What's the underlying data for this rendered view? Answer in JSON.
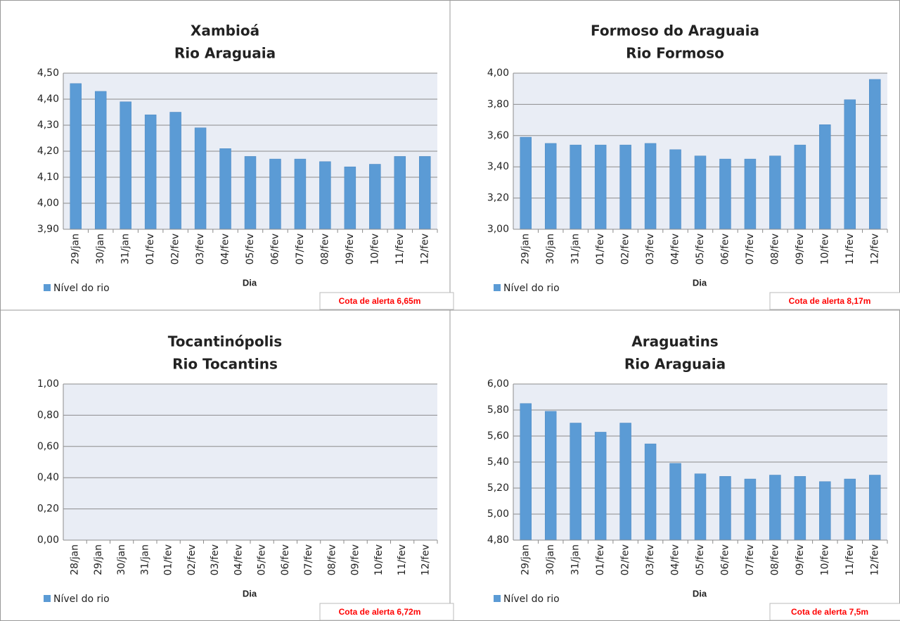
{
  "chart_data": [
    {
      "type": "bar",
      "title": "Xambioá",
      "subtitle": "Rio Araguaia",
      "categories": [
        "29/jan",
        "30/jan",
        "31/jan",
        "01/fev",
        "02/fev",
        "03/fev",
        "04/fev",
        "05/fev",
        "06/fev",
        "07/fev",
        "08/fev",
        "09/fev",
        "10/fev",
        "11/fev",
        "12/fev"
      ],
      "series": [
        {
          "name": "Nível do rio",
          "color": "#5b9bd5",
          "values": [
            4.46,
            4.43,
            4.39,
            4.34,
            4.35,
            4.29,
            4.21,
            4.18,
            4.17,
            4.17,
            4.16,
            4.14,
            4.15,
            4.18,
            4.18
          ]
        }
      ],
      "ylim": [
        3.9,
        4.5
      ],
      "yticks": [
        {
          "value": 3.9,
          "label": "3,90"
        },
        {
          "value": 4.0,
          "label": "4,00"
        },
        {
          "value": 4.1,
          "label": "4,10"
        },
        {
          "value": 4.2,
          "label": "4,20"
        },
        {
          "value": 4.3,
          "label": "4,30"
        },
        {
          "value": 4.4,
          "label": "4,40"
        },
        {
          "value": 4.5,
          "label": "4,50"
        }
      ],
      "grid": true,
      "x_label": "Dia",
      "annotation": "Cota de alerta 6,65m"
    },
    {
      "type": "bar",
      "title": "Formoso do Araguaia",
      "subtitle": "Rio Formoso",
      "categories": [
        "29/jan",
        "30/jan",
        "31/jan",
        "01/fev",
        "02/fev",
        "03/fev",
        "04/fev",
        "05/fev",
        "06/fev",
        "07/fev",
        "08/fev",
        "09/fev",
        "10/fev",
        "11/fev",
        "12/fev"
      ],
      "series": [
        {
          "name": "Nível do rio",
          "color": "#5b9bd5",
          "values": [
            3.59,
            3.55,
            3.54,
            3.54,
            3.54,
            3.55,
            3.51,
            3.47,
            3.45,
            3.45,
            3.47,
            3.54,
            3.67,
            3.83,
            3.96
          ]
        }
      ],
      "ylim": [
        3.0,
        4.0
      ],
      "yticks": [
        {
          "value": 3.0,
          "label": "3,00"
        },
        {
          "value": 3.2,
          "label": "3,20"
        },
        {
          "value": 3.4,
          "label": "3,40"
        },
        {
          "value": 3.6,
          "label": "3,60"
        },
        {
          "value": 3.8,
          "label": "3,80"
        },
        {
          "value": 4.0,
          "label": "4,00"
        }
      ],
      "grid": true,
      "x_label": "Dia",
      "annotation": "Cota de alerta 8,17m"
    },
    {
      "type": "bar",
      "title": "Tocantinópolis",
      "subtitle": "Rio Tocantins",
      "categories": [
        "28/jan",
        "29/jan",
        "30/jan",
        "31/jan",
        "01/fev",
        "02/fev",
        "03/fev",
        "04/fev",
        "05/fev",
        "06/fev",
        "07/fev",
        "08/fev",
        "09/fev",
        "10/fev",
        "11/fev",
        "12/fev"
      ],
      "series": [
        {
          "name": "Nível do rio",
          "color": "#5b9bd5",
          "values": [
            null,
            null,
            null,
            null,
            null,
            null,
            null,
            null,
            null,
            null,
            null,
            null,
            null,
            null,
            null,
            null
          ]
        }
      ],
      "ylim": [
        0,
        1.0
      ],
      "yticks": [
        {
          "value": 0,
          "label": "0,00"
        },
        {
          "value": 0.2,
          "label": "0,20"
        },
        {
          "value": 0.4,
          "label": "0,40"
        },
        {
          "value": 0.6,
          "label": "0,60"
        },
        {
          "value": 0.8,
          "label": "0,80"
        },
        {
          "value": 1.0,
          "label": "1,00"
        }
      ],
      "grid": true,
      "x_label": "Dia",
      "annotation": "Cota de alerta 6,72m"
    },
    {
      "type": "bar",
      "title": "Araguatins",
      "subtitle": "Rio Araguaia",
      "categories": [
        "29/jan",
        "30/jan",
        "31/jan",
        "01/fev",
        "02/fev",
        "03/fev",
        "04/fev",
        "05/fev",
        "06/fev",
        "07/fev",
        "08/fev",
        "09/fev",
        "10/fev",
        "11/fev",
        "12/fev"
      ],
      "series": [
        {
          "name": "Nível do rio",
          "color": "#5b9bd5",
          "values": [
            5.85,
            5.79,
            5.7,
            5.63,
            5.7,
            5.54,
            5.39,
            5.31,
            5.29,
            5.27,
            5.3,
            5.29,
            5.25,
            5.27,
            5.3
          ]
        }
      ],
      "ylim": [
        4.8,
        6.0
      ],
      "yticks": [
        {
          "value": 4.8,
          "label": "4,80"
        },
        {
          "value": 5.0,
          "label": "5,00"
        },
        {
          "value": 5.2,
          "label": "5,20"
        },
        {
          "value": 5.4,
          "label": "5,40"
        },
        {
          "value": 5.6,
          "label": "5,60"
        },
        {
          "value": 5.8,
          "label": "5,80"
        },
        {
          "value": 6.0,
          "label": "6,00"
        }
      ],
      "grid": true,
      "x_label": "Dia",
      "annotation": "Cota de alerta 7,5m"
    }
  ]
}
